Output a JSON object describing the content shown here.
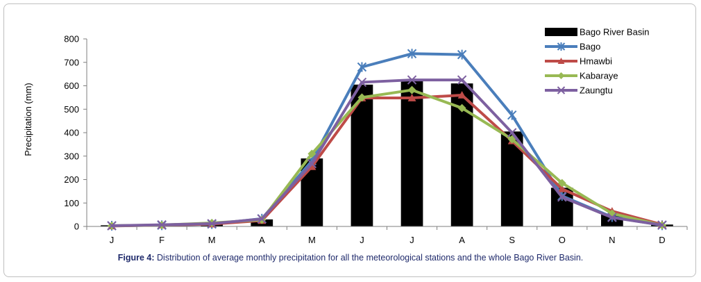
{
  "chart_data": {
    "type": "bar",
    "categories": [
      "J",
      "F",
      "M",
      "A",
      "M",
      "J",
      "J",
      "A",
      "S",
      "O",
      "N",
      "D"
    ],
    "ylabel": "Precipitation (mm)",
    "ylim": [
      0,
      800
    ],
    "yticks": [
      0,
      100,
      200,
      300,
      400,
      500,
      600,
      700,
      800
    ],
    "grid": false,
    "legend_position": "top-right",
    "series": [
      {
        "name": "Bago River Basin",
        "kind": "bar",
        "color": "#000000",
        "values": [
          5,
          6,
          10,
          30,
          290,
          605,
          620,
          610,
          405,
          165,
          50,
          8
        ]
      },
      {
        "name": "Bago",
        "kind": "line",
        "marker": "asterisk",
        "color": "#4a7ebb",
        "values": [
          3,
          5,
          10,
          33,
          280,
          680,
          737,
          733,
          475,
          130,
          40,
          5
        ]
      },
      {
        "name": "Hmawbi",
        "kind": "line",
        "marker": "triangle",
        "color": "#be4b48",
        "values": [
          2,
          6,
          10,
          25,
          255,
          548,
          548,
          560,
          365,
          160,
          65,
          8
        ]
      },
      {
        "name": "Kabaraye",
        "kind": "line",
        "marker": "diamond",
        "color": "#98b954",
        "values": [
          3,
          6,
          15,
          28,
          310,
          550,
          582,
          505,
          372,
          185,
          55,
          5
        ]
      },
      {
        "name": "Zaungtu",
        "kind": "line",
        "marker": "x",
        "color": "#7d60a0",
        "values": [
          3,
          7,
          12,
          32,
          268,
          615,
          625,
          625,
          400,
          125,
          38,
          6
        ]
      }
    ]
  },
  "caption": {
    "label": "Figure 4:",
    "text": " Distribution of average monthly precipitation for all the meteorological stations and the whole Bago River Basin."
  }
}
